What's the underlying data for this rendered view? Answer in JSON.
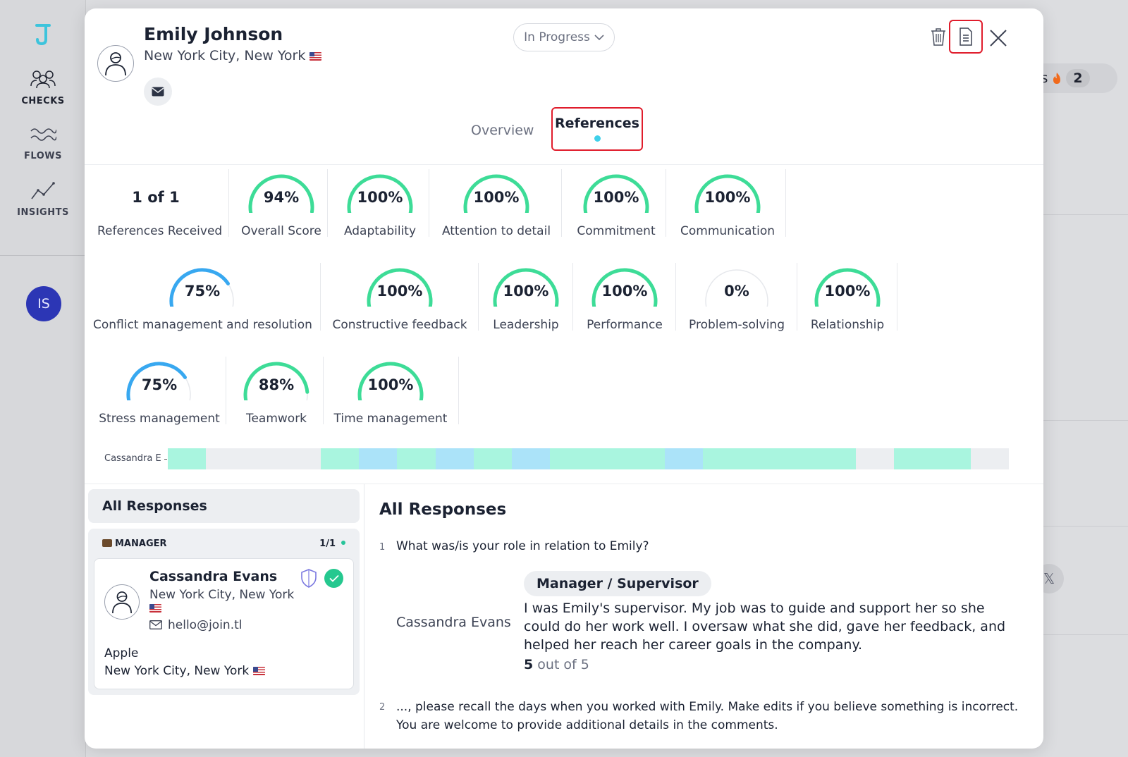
{
  "sidebar": {
    "items": [
      {
        "label": "CHECKS"
      },
      {
        "label": "FLOWS"
      },
      {
        "label": "INSIGHTS"
      }
    ],
    "user_initials": "IS"
  },
  "background": {
    "pill_text": "ts",
    "pill_count": "2"
  },
  "candidate": {
    "name": "Emily Johnson",
    "location": "New York City, New York"
  },
  "status": {
    "selected": "In Progress"
  },
  "tabs": [
    {
      "label": "Overview"
    },
    {
      "label": "References"
    }
  ],
  "summary": {
    "received_value": "1 of 1",
    "received_label": "References Received"
  },
  "gauges": [
    {
      "label": "Overall Score",
      "value": "94%",
      "fraction": 0.94,
      "color": "#3ddc97"
    },
    {
      "label": "Adaptability",
      "value": "100%",
      "fraction": 1.0,
      "color": "#3ddc97"
    },
    {
      "label": "Attention to detail",
      "value": "100%",
      "fraction": 1.0,
      "color": "#3ddc97"
    },
    {
      "label": "Commitment",
      "value": "100%",
      "fraction": 1.0,
      "color": "#3ddc97"
    },
    {
      "label": "Communication",
      "value": "100%",
      "fraction": 1.0,
      "color": "#3ddc97"
    },
    {
      "label": "Conflict management and resolution",
      "value": "75%",
      "fraction": 0.75,
      "color": "#38a8f0"
    },
    {
      "label": "Constructive feedback",
      "value": "100%",
      "fraction": 1.0,
      "color": "#3ddc97"
    },
    {
      "label": "Leadership",
      "value": "100%",
      "fraction": 1.0,
      "color": "#3ddc97"
    },
    {
      "label": "Performance",
      "value": "100%",
      "fraction": 1.0,
      "color": "#3ddc97"
    },
    {
      "label": "Problem-solving",
      "value": "0%",
      "fraction": 0.0,
      "color": "#3ddc97"
    },
    {
      "label": "Relationship",
      "value": "100%",
      "fraction": 1.0,
      "color": "#3ddc97"
    },
    {
      "label": "Stress management",
      "value": "75%",
      "fraction": 0.75,
      "color": "#38a8f0"
    },
    {
      "label": "Teamwork",
      "value": "88%",
      "fraction": 0.88,
      "color": "#3ddc97"
    },
    {
      "label": "Time management",
      "value": "100%",
      "fraction": 1.0,
      "color": "#3ddc97"
    }
  ],
  "heatmap": {
    "row_label": "Cassandra E",
    "cells": [
      "#a9f5df",
      "#eceef1",
      "#eceef1",
      "#eceef1",
      "#a9f5df",
      "#abe3f9",
      "#a9f5df",
      "#abe3f9",
      "#a9f5df",
      "#abe3f9",
      "#a9f5df",
      "#a9f5df",
      "#a9f5df",
      "#abe3f9",
      "#a9f5df",
      "#a9f5df",
      "#a9f5df",
      "#a9f5df",
      "#eceef1",
      "#a9f5df",
      "#a9f5df",
      "#eceef1"
    ]
  },
  "responses_panel": {
    "title": "All Responses",
    "group_label": "MANAGER",
    "group_count": "1/1",
    "referee": {
      "name": "Cassandra Evans",
      "location": "New York City, New York",
      "email": "hello@join.tl",
      "company": "Apple",
      "company_location": "New York City, New York"
    }
  },
  "responses_detail": {
    "title": "All Responses",
    "questions": [
      {
        "number": "1",
        "text": "What was/is your role in relation to Emily?"
      },
      {
        "number": "2",
        "text": "..., please recall the days when you worked with Emily. Make edits if you believe something is incorrect. You are welcome to provide additional details in the comments."
      }
    ],
    "answer": {
      "respondent": "Cassandra Evans",
      "choice": "Manager / Supervisor",
      "comment": "I was Emily's supervisor. My job was to guide and support her so she could do her work well. I oversaw what she did, gave her feedback, and helped her reach her career goals in the company.",
      "score_value": "5",
      "score_suffix": " out of 5"
    }
  }
}
